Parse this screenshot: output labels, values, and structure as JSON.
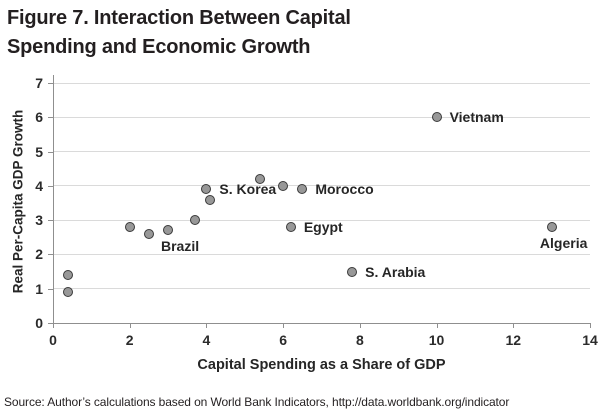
{
  "title": {
    "line1": "Figure 7. Interaction Between Capital",
    "line2": "Spending and Economic Growth"
  },
  "source": {
    "text": "Source: Author’s calculations based on World Bank Indicators, http://data.worldbank.org/indicator"
  },
  "chart_data": {
    "type": "scatter",
    "title": "Figure 7. Interaction Between Capital Spending and Economic Growth",
    "xlabel": "Capital Spending as a Share of GDP",
    "ylabel": "Real Per-Capita GDP Growth",
    "xlim": [
      0,
      14
    ],
    "ylim": [
      0,
      7
    ],
    "xticks": [
      0,
      2,
      4,
      6,
      8,
      10,
      12,
      14
    ],
    "yticks": [
      0,
      1,
      2,
      3,
      4,
      5,
      6,
      7
    ],
    "grid": "horizontal",
    "legend": "none",
    "colors": {
      "marker_fill": "#989898",
      "marker_stroke": "#3a3a3a",
      "gridline": "#dadada",
      "axis": "#8f8f8f",
      "text": "#262626"
    },
    "points": [
      {
        "x": 0.4,
        "y": 1.4
      },
      {
        "x": 0.4,
        "y": 0.9
      },
      {
        "x": 2.0,
        "y": 2.8
      },
      {
        "x": 2.5,
        "y": 2.6
      },
      {
        "x": 3.0,
        "y": 2.7,
        "label": "Brazil",
        "label_pos": "below"
      },
      {
        "x": 3.7,
        "y": 3.0
      },
      {
        "x": 4.0,
        "y": 3.9,
        "label": "S. Korea",
        "label_pos": "right"
      },
      {
        "x": 4.1,
        "y": 3.6
      },
      {
        "x": 5.4,
        "y": 4.2
      },
      {
        "x": 6.0,
        "y": 4.0
      },
      {
        "x": 6.5,
        "y": 3.9,
        "label": "Morocco",
        "label_pos": "right"
      },
      {
        "x": 6.2,
        "y": 2.8,
        "label": "Egypt",
        "label_pos": "right"
      },
      {
        "x": 7.8,
        "y": 1.5,
        "label": "S. Arabia",
        "label_pos": "right"
      },
      {
        "x": 10.0,
        "y": 6.0,
        "label": "Vietnam",
        "label_pos": "right"
      },
      {
        "x": 13.0,
        "y": 2.8,
        "label": "Algeria",
        "label_pos": "below"
      }
    ]
  }
}
